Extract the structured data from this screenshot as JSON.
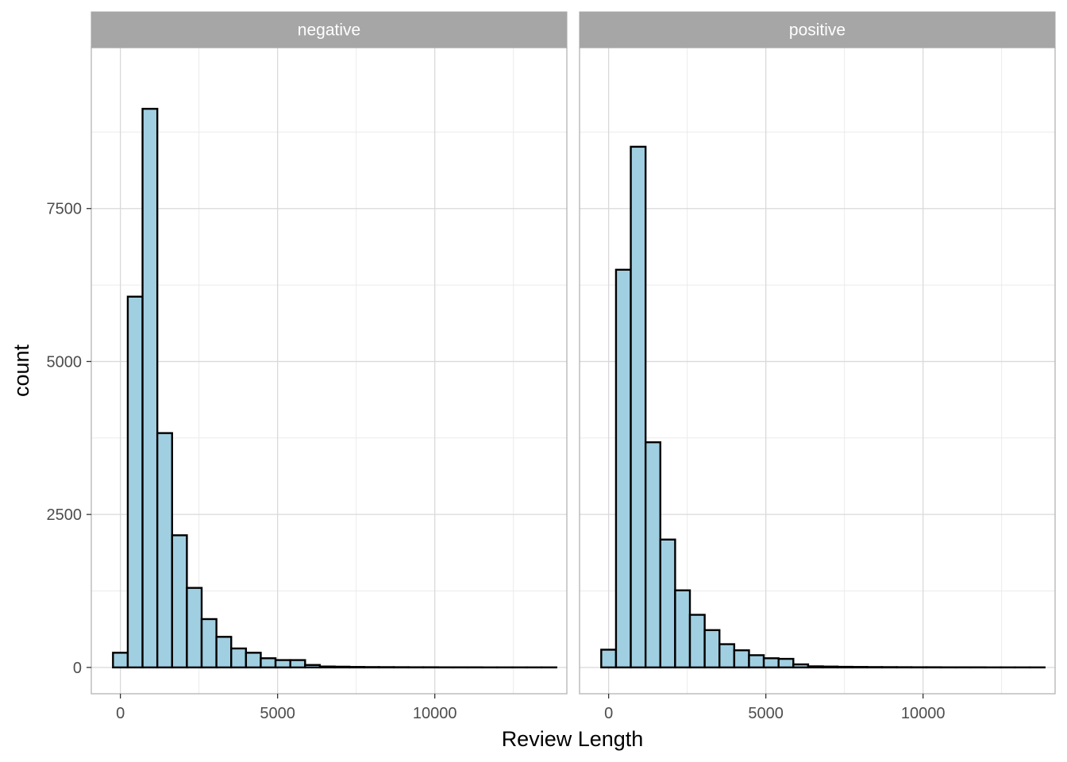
{
  "chart_data": {
    "type": "bar",
    "subtype": "histogram",
    "xlabel": "Review Length",
    "ylabel": "count",
    "xlim": [
      -925,
      14200
    ],
    "ylim": [
      -430,
      10130
    ],
    "x_ticks": [
      0,
      5000,
      10000
    ],
    "y_ticks": [
      0,
      2500,
      5000,
      7500
    ],
    "bin_width": 470,
    "bin_centers": [
      0,
      470,
      940,
      1410,
      1880,
      2350,
      2820,
      3290,
      3760,
      4230,
      4700,
      5170,
      5640,
      6110,
      6580,
      7050,
      7520,
      7990,
      8460,
      8930,
      9400,
      9870,
      10340,
      10810,
      11280,
      11750,
      12220,
      12690,
      13160,
      13630
    ],
    "bar_fill": "#a0cfe1",
    "bar_outline": "#000000",
    "grid": true,
    "panels": [
      {
        "label": "negative",
        "values": [
          240,
          6060,
          9130,
          3830,
          2160,
          1300,
          790,
          500,
          310,
          240,
          150,
          120,
          120,
          40,
          15,
          12,
          8,
          6,
          5,
          4,
          3,
          3,
          2,
          2,
          2,
          1,
          1,
          1,
          1,
          1
        ]
      },
      {
        "label": "positive",
        "values": [
          290,
          6500,
          8510,
          3680,
          2090,
          1260,
          860,
          610,
          380,
          280,
          200,
          150,
          140,
          50,
          18,
          14,
          10,
          8,
          6,
          5,
          4,
          3,
          3,
          2,
          2,
          2,
          1,
          1,
          1,
          1
        ]
      }
    ]
  }
}
